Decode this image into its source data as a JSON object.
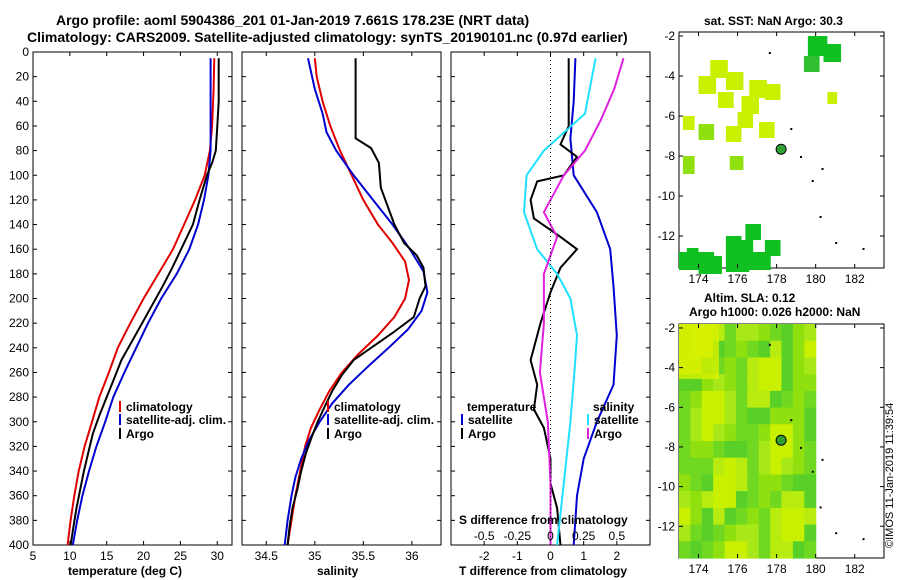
{
  "header": {
    "line1": "Argo profile: aoml 5904386_201 01-Jan-2019 7.661S 178.23E (NRT data)",
    "line2": "Climatology: CARS2009. Satellite-adjusted climatology: synTS_20190101.nc (0.97d earlier)"
  },
  "colors": {
    "climatology": "#e00000",
    "satellite": "#0000d0",
    "argo": "#000000",
    "t_satellite": "#20e0ff",
    "s_satellite": "#e020e0",
    "sst_green_light": "#c8f000",
    "sst_green_dark": "#10c020",
    "sla_field": "#a0e020"
  },
  "chart_data": [
    {
      "type": "line",
      "id": "temperature",
      "xlabel": "temperature (deg C)",
      "ylabel": "",
      "xlim": [
        5,
        32
      ],
      "ylim": [
        400,
        0
      ],
      "xticks": [
        5,
        10,
        15,
        20,
        25,
        30
      ],
      "yticks": [
        0,
        20,
        40,
        60,
        80,
        100,
        120,
        140,
        160,
        180,
        200,
        220,
        240,
        260,
        280,
        300,
        320,
        340,
        360,
        380,
        400
      ],
      "legend": [
        "climatology",
        "satellite-adj. clim.",
        "Argo"
      ],
      "series": [
        {
          "name": "climatology",
          "color": "#e00000",
          "points": [
            [
              29.6,
              5
            ],
            [
              29.5,
              30
            ],
            [
              29.3,
              60
            ],
            [
              29.0,
              80
            ],
            [
              28.3,
              100
            ],
            [
              27.0,
              120
            ],
            [
              25.5,
              140
            ],
            [
              24.0,
              160
            ],
            [
              22.0,
              180
            ],
            [
              20.0,
              200
            ],
            [
              18.2,
              220
            ],
            [
              16.5,
              240
            ],
            [
              15.3,
              260
            ],
            [
              14.0,
              280
            ],
            [
              13.0,
              300
            ],
            [
              12.0,
              320
            ],
            [
              11.2,
              340
            ],
            [
              10.6,
              360
            ],
            [
              10.1,
              380
            ],
            [
              9.7,
              400
            ]
          ]
        },
        {
          "name": "satellite-adj. clim.",
          "color": "#0000d0",
          "points": [
            [
              29.1,
              5
            ],
            [
              29.1,
              40
            ],
            [
              29.1,
              60
            ],
            [
              29.1,
              80
            ],
            [
              28.8,
              100
            ],
            [
              28.2,
              120
            ],
            [
              27.4,
              140
            ],
            [
              26.2,
              160
            ],
            [
              24.5,
              180
            ],
            [
              22.4,
              200
            ],
            [
              20.6,
              220
            ],
            [
              19.0,
              240
            ],
            [
              17.4,
              260
            ],
            [
              15.9,
              280
            ],
            [
              14.8,
              300
            ],
            [
              13.6,
              320
            ],
            [
              12.6,
              340
            ],
            [
              11.7,
              360
            ],
            [
              11.0,
              380
            ],
            [
              10.4,
              400
            ]
          ]
        },
        {
          "name": "Argo",
          "color": "#000000",
          "points": [
            [
              30.2,
              5
            ],
            [
              30.2,
              40
            ],
            [
              30.0,
              60
            ],
            [
              29.8,
              80
            ],
            [
              29.3,
              90
            ],
            [
              28.6,
              100
            ],
            [
              27.6,
              120
            ],
            [
              26.7,
              140
            ],
            [
              25.1,
              160
            ],
            [
              23.9,
              175
            ],
            [
              22.6,
              190
            ],
            [
              21.2,
              205
            ],
            [
              19.8,
              220
            ],
            [
              18.4,
              235
            ],
            [
              17.0,
              250
            ],
            [
              16.0,
              265
            ],
            [
              15.0,
              280
            ],
            [
              14.0,
              295
            ],
            [
              13.1,
              310
            ],
            [
              12.5,
              325
            ],
            [
              11.9,
              340
            ],
            [
              11.4,
              355
            ],
            [
              10.9,
              370
            ],
            [
              10.5,
              385
            ],
            [
              10.1,
              400
            ]
          ]
        }
      ]
    },
    {
      "type": "line",
      "id": "salinity",
      "xlabel": "salinity",
      "ylabel": "",
      "xlim": [
        34.25,
        36.3
      ],
      "ylim": [
        400,
        0
      ],
      "xticks": [
        34.5,
        35,
        35.5,
        36
      ],
      "xticklabels": [
        "34.5",
        "35",
        "35.5",
        "36"
      ],
      "legend": [
        "climatology",
        "satellite-adj. clim.",
        "Argo"
      ],
      "series": [
        {
          "name": "climatology",
          "color": "#e00000",
          "points": [
            [
              35.0,
              5
            ],
            [
              35.02,
              20
            ],
            [
              35.08,
              40
            ],
            [
              35.16,
              60
            ],
            [
              35.26,
              80
            ],
            [
              35.38,
              100
            ],
            [
              35.5,
              120
            ],
            [
              35.65,
              140
            ],
            [
              35.8,
              155
            ],
            [
              35.93,
              170
            ],
            [
              35.97,
              185
            ],
            [
              35.93,
              200
            ],
            [
              35.82,
              215
            ],
            [
              35.65,
              230
            ],
            [
              35.45,
              245
            ],
            [
              35.28,
              260
            ],
            [
              35.15,
              275
            ],
            [
              35.05,
              290
            ],
            [
              34.96,
              305
            ],
            [
              34.9,
              320
            ],
            [
              34.85,
              340
            ],
            [
              34.8,
              360
            ],
            [
              34.76,
              380
            ],
            [
              34.72,
              400
            ]
          ]
        },
        {
          "name": "satellite-adj. clim.",
          "color": "#0000d0",
          "points": [
            [
              34.93,
              5
            ],
            [
              35.0,
              30
            ],
            [
              35.08,
              50
            ],
            [
              35.12,
              65
            ],
            [
              35.22,
              80
            ],
            [
              35.4,
              100
            ],
            [
              35.6,
              120
            ],
            [
              35.8,
              140
            ],
            [
              35.98,
              160
            ],
            [
              36.12,
              178
            ],
            [
              36.16,
              195
            ],
            [
              36.1,
              210
            ],
            [
              35.96,
              225
            ],
            [
              35.76,
              240
            ],
            [
              35.55,
              255
            ],
            [
              35.35,
              270
            ],
            [
              35.18,
              285
            ],
            [
              35.05,
              300
            ],
            [
              34.94,
              315
            ],
            [
              34.86,
              330
            ],
            [
              34.8,
              345
            ],
            [
              34.76,
              360
            ],
            [
              34.72,
              380
            ],
            [
              34.69,
              400
            ]
          ]
        },
        {
          "name": "Argo",
          "color": "#000000",
          "points": [
            [
              35.42,
              5
            ],
            [
              35.42,
              70
            ],
            [
              35.58,
              78
            ],
            [
              35.66,
              90
            ],
            [
              35.68,
              110
            ],
            [
              35.75,
              125
            ],
            [
              35.82,
              140
            ],
            [
              35.92,
              155
            ],
            [
              36.05,
              165
            ],
            [
              36.12,
              175
            ],
            [
              36.14,
              190
            ],
            [
              36.08,
              200
            ],
            [
              36.02,
              215
            ],
            [
              35.8,
              228
            ],
            [
              35.58,
              240
            ],
            [
              35.4,
              250
            ],
            [
              35.28,
              262
            ],
            [
              35.18,
              275
            ],
            [
              35.1,
              288
            ],
            [
              35.03,
              300
            ],
            [
              34.97,
              312
            ],
            [
              34.91,
              325
            ],
            [
              34.86,
              340
            ],
            [
              34.82,
              355
            ],
            [
              34.77,
              370
            ],
            [
              34.74,
              385
            ],
            [
              34.72,
              400
            ]
          ]
        }
      ]
    },
    {
      "type": "line",
      "id": "difference",
      "xlabel": "T difference from climatology",
      "top_axis_label": "S difference from climatology",
      "xlim": [
        -3,
        3
      ],
      "ylim": [
        400,
        0
      ],
      "xticks": [
        -2,
        -1,
        0,
        1,
        2
      ],
      "xticklabels": [
        "-2",
        "-1",
        "0",
        "1",
        "2"
      ],
      "s_xticks": [
        -0.5,
        -0.25,
        0,
        0.25,
        0.5
      ],
      "s_xticklabels": [
        "-0.5",
        "-0.25",
        "0",
        "0.25",
        "0.5"
      ],
      "legend_temperature": {
        "title": "temperature",
        "items": [
          "satellite",
          "Argo"
        ]
      },
      "legend_salinity": {
        "title": "salinity",
        "items": [
          "satellite",
          "Argo"
        ]
      },
      "series": [
        {
          "name": "T satellite",
          "color": "#0000d0",
          "points": [
            [
              0.75,
              5
            ],
            [
              0.7,
              40
            ],
            [
              0.6,
              70
            ],
            [
              0.7,
              100
            ],
            [
              1.4,
              130
            ],
            [
              1.8,
              160
            ],
            [
              1.9,
              190
            ],
            [
              2.0,
              230
            ],
            [
              1.9,
              270
            ],
            [
              1.4,
              300
            ],
            [
              1.0,
              330
            ],
            [
              0.8,
              360
            ],
            [
              0.7,
              400
            ]
          ]
        },
        {
          "name": "T Argo",
          "color": "#000000",
          "points": [
            [
              0.55,
              5
            ],
            [
              0.55,
              60
            ],
            [
              0.3,
              75
            ],
            [
              0.8,
              85
            ],
            [
              0.4,
              100
            ],
            [
              -0.4,
              105
            ],
            [
              -0.6,
              120
            ],
            [
              -0.5,
              135
            ],
            [
              0.3,
              150
            ],
            [
              0.8,
              160
            ],
            [
              0.3,
              175
            ],
            [
              0.0,
              195
            ],
            [
              -0.3,
              220
            ],
            [
              -0.6,
              250
            ],
            [
              -0.4,
              270
            ],
            [
              -0.5,
              290
            ],
            [
              -0.2,
              305
            ],
            [
              0.0,
              330
            ],
            [
              0.0,
              350
            ],
            [
              0.2,
              370
            ],
            [
              0.3,
              400
            ]
          ]
        },
        {
          "name": "S satellite",
          "color": "#20e0ff",
          "points": [
            [
              0.34,
              5
            ],
            [
              0.26,
              50
            ],
            [
              -0.05,
              80
            ],
            [
              -0.18,
              100
            ],
            [
              -0.2,
              130
            ],
            [
              -0.1,
              160
            ],
            [
              0.05,
              180
            ],
            [
              0.15,
              200
            ],
            [
              0.2,
              230
            ],
            [
              0.18,
              260
            ],
            [
              0.15,
              300
            ],
            [
              0.1,
              350
            ],
            [
              0.05,
              400
            ]
          ]
        },
        {
          "name": "S Argo",
          "color": "#e020e0",
          "points": [
            [
              0.55,
              5
            ],
            [
              0.48,
              30
            ],
            [
              0.38,
              55
            ],
            [
              0.26,
              80
            ],
            [
              0.1,
              100
            ],
            [
              -0.05,
              130
            ],
            [
              0.05,
              150
            ],
            [
              -0.05,
              180
            ],
            [
              -0.05,
              220
            ],
            [
              -0.08,
              260
            ],
            [
              -0.02,
              300
            ],
            [
              0.0,
              350
            ],
            [
              0.0,
              400
            ]
          ]
        }
      ]
    },
    {
      "type": "heatmap",
      "id": "sst_map",
      "title": "sat. SST: NaN Argo: 30.3",
      "xticks": [
        174,
        176,
        178,
        180,
        182
      ],
      "yticks": [
        -2,
        -4,
        -6,
        -8,
        -10,
        -12
      ],
      "xlim": [
        173,
        183.5
      ],
      "ylim": [
        -13.6,
        -1.8
      ],
      "argo_location": [
        178.23,
        -7.661
      ]
    },
    {
      "type": "heatmap",
      "id": "sla_map",
      "title_line1": "Altim. SLA: 0.12",
      "title_line2": "Argo h1000: 0.026 h2000: NaN",
      "xticks": [
        174,
        176,
        178,
        180,
        182
      ],
      "yticks": [
        -2,
        -4,
        -6,
        -8,
        -10,
        -12
      ],
      "xlim": [
        173,
        183.5
      ],
      "ylim": [
        -13.6,
        -1.8
      ],
      "argo_location": [
        178.23,
        -7.661
      ]
    }
  ],
  "watermark": "©IMOS 11-Jan-2019 11:39:54"
}
